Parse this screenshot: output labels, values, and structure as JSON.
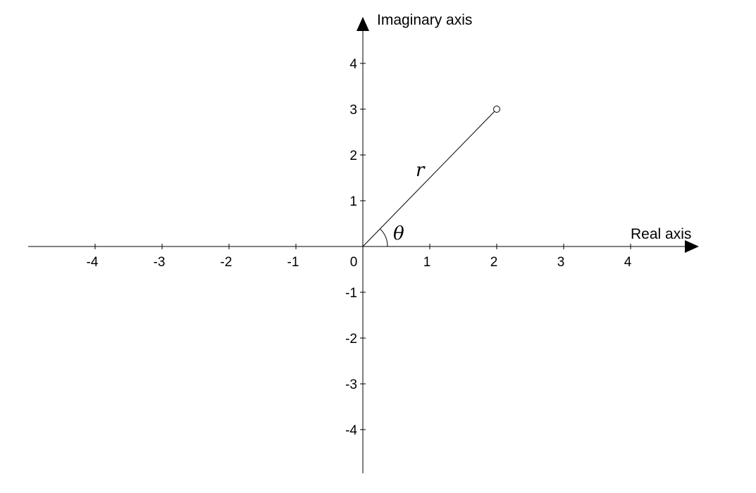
{
  "diagram": {
    "x_axis_title": "Real axis",
    "y_axis_title": "Imaginary axis",
    "origin_label": "0",
    "x_ticks": [
      {
        "value": -4,
        "label": "-4"
      },
      {
        "value": -3,
        "label": "-3"
      },
      {
        "value": -2,
        "label": "-2"
      },
      {
        "value": -1,
        "label": "-1"
      },
      {
        "value": 1,
        "label": "1"
      },
      {
        "value": 2,
        "label": "2"
      },
      {
        "value": 3,
        "label": "3"
      },
      {
        "value": 4,
        "label": "4"
      }
    ],
    "y_ticks": [
      {
        "value": 4,
        "label": "4"
      },
      {
        "value": 3,
        "label": "3"
      },
      {
        "value": 2,
        "label": "2"
      },
      {
        "value": 1,
        "label": "1"
      },
      {
        "value": -1,
        "label": "-1"
      },
      {
        "value": -2,
        "label": "-2"
      },
      {
        "value": -3,
        "label": "-3"
      },
      {
        "value": -4,
        "label": "-4"
      }
    ],
    "point": {
      "x": 2,
      "y": 3
    },
    "radius_label": "r",
    "angle_label": "θ"
  }
}
